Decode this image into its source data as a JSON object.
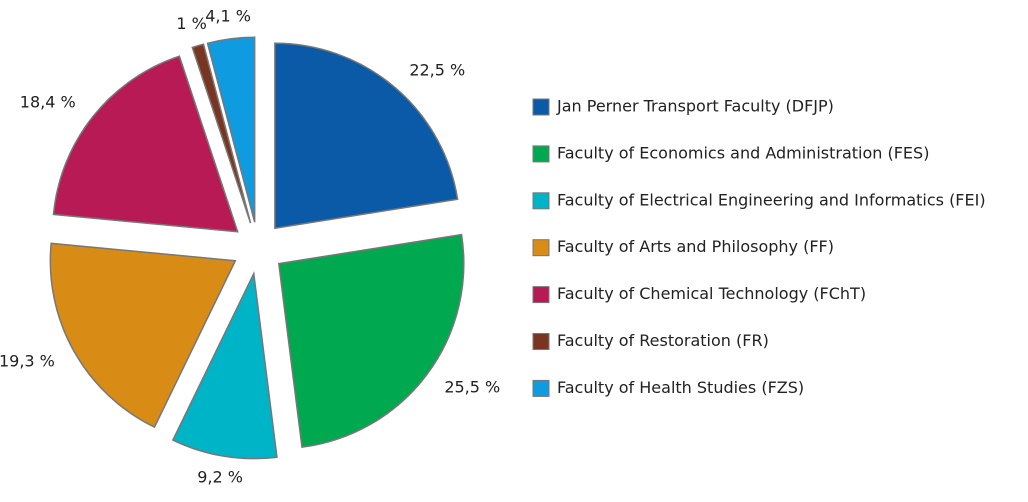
{
  "chart_data": {
    "type": "pie",
    "categories": [
      "Jan Perner Transport Faculty (DFJP)",
      "Faculty of Economics and Administration (FES)",
      "Faculty of Electrical Engineering and Informatics (FEI)",
      "Faculty of Arts and Philosophy (FF)",
      "Faculty of Chemical Technology (FChT)",
      "Faculty of Restoration (FR)",
      "Faculty of Health Studies (FZS)"
    ],
    "values": [
      22.5,
      25.5,
      9.2,
      19.3,
      18.4,
      1,
      4.1
    ],
    "value_labels": [
      "22,5 %",
      "25,5 %",
      "9,2 %",
      "19,3 %",
      "18,4 %",
      "1 %",
      "4,1 %"
    ],
    "colors": [
      "#0a5aa8",
      "#00a94f",
      "#00b4c8",
      "#d88c16",
      "#b81a55",
      "#7a3520",
      "#0f9be0"
    ],
    "legend": "right"
  }
}
